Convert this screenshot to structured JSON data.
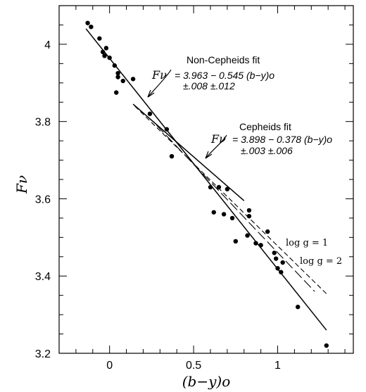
{
  "chart_data": {
    "type": "scatter",
    "xlabel": "(b−y)o",
    "ylabel": "Fν",
    "xlim": [
      -0.3,
      1.45
    ],
    "ylim": [
      3.2,
      4.1
    ],
    "xticks": [
      0,
      0.5,
      1
    ],
    "xtick_labels": [
      "0",
      "0.5",
      "1"
    ],
    "yticks": [
      3.2,
      3.4,
      3.6,
      3.8,
      4.0
    ],
    "ytick_labels": [
      "3.2",
      "3.4",
      "3.6",
      "3.8",
      "4"
    ],
    "grid": false,
    "points": [
      {
        "x": -0.13,
        "y": 4.055
      },
      {
        "x": -0.11,
        "y": 4.045
      },
      {
        "x": -0.06,
        "y": 4.015
      },
      {
        "x": -0.04,
        "y": 3.98
      },
      {
        "x": -0.03,
        "y": 3.97
      },
      {
        "x": -0.02,
        "y": 3.99
      },
      {
        "x": 0.0,
        "y": 3.965
      },
      {
        "x": 0.03,
        "y": 3.945
      },
      {
        "x": 0.05,
        "y": 3.925
      },
      {
        "x": 0.05,
        "y": 3.915
      },
      {
        "x": 0.08,
        "y": 3.905
      },
      {
        "x": 0.14,
        "y": 3.91
      },
      {
        "x": 0.04,
        "y": 3.875
      },
      {
        "x": 0.24,
        "y": 3.82
      },
      {
        "x": 0.34,
        "y": 3.78
      },
      {
        "x": 0.37,
        "y": 3.71
      },
      {
        "x": 0.6,
        "y": 3.63
      },
      {
        "x": 0.65,
        "y": 3.63
      },
      {
        "x": 0.7,
        "y": 3.625
      },
      {
        "x": 0.62,
        "y": 3.565
      },
      {
        "x": 0.68,
        "y": 3.56
      },
      {
        "x": 0.73,
        "y": 3.55
      },
      {
        "x": 0.75,
        "y": 3.49
      },
      {
        "x": 0.83,
        "y": 3.57
      },
      {
        "x": 0.83,
        "y": 3.555
      },
      {
        "x": 0.82,
        "y": 3.505
      },
      {
        "x": 0.87,
        "y": 3.485
      },
      {
        "x": 0.9,
        "y": 3.48
      },
      {
        "x": 0.94,
        "y": 3.515
      },
      {
        "x": 0.98,
        "y": 3.46
      },
      {
        "x": 0.99,
        "y": 3.445
      },
      {
        "x": 1.0,
        "y": 3.42
      },
      {
        "x": 1.02,
        "y": 3.41
      },
      {
        "x": 1.03,
        "y": 3.435
      },
      {
        "x": 1.12,
        "y": 3.32
      },
      {
        "x": 1.29,
        "y": 3.22
      }
    ],
    "lines": [
      {
        "name": "Non-Cepheids fit",
        "style": "solid",
        "x": [
          -0.14,
          1.29
        ],
        "y": [
          4.04,
          3.26
        ]
      },
      {
        "name": "Cepheids fit",
        "style": "solid",
        "x": [
          0.14,
          0.8
        ],
        "y": [
          3.845,
          3.595
        ]
      },
      {
        "name": "log g = 1",
        "style": "dash",
        "x": [
          0.15,
          1.3
        ],
        "y": [
          3.84,
          3.35
        ]
      },
      {
        "name": "log g = 2",
        "style": "longdash",
        "x": [
          0.28,
          1.22
        ],
        "y": [
          3.79,
          3.36
        ]
      }
    ],
    "annotations": {
      "noncepheid_title": "Non-Cepheids fit",
      "noncepheid_eq_lhs": "Fν",
      "noncepheid_eq_rhs": "= 3.963 − 0.545 (b−y)o",
      "noncepheid_err": "±.008      ±.012",
      "cepheid_title": "Cepheids fit",
      "cepheid_eq_lhs": "Fν",
      "cepheid_eq_rhs": "= 3.898 − 0.378 (b−y)o",
      "cepheid_err": "±.003      ±.006",
      "logg1": "log g = 1",
      "logg2": "log g = 2"
    }
  }
}
